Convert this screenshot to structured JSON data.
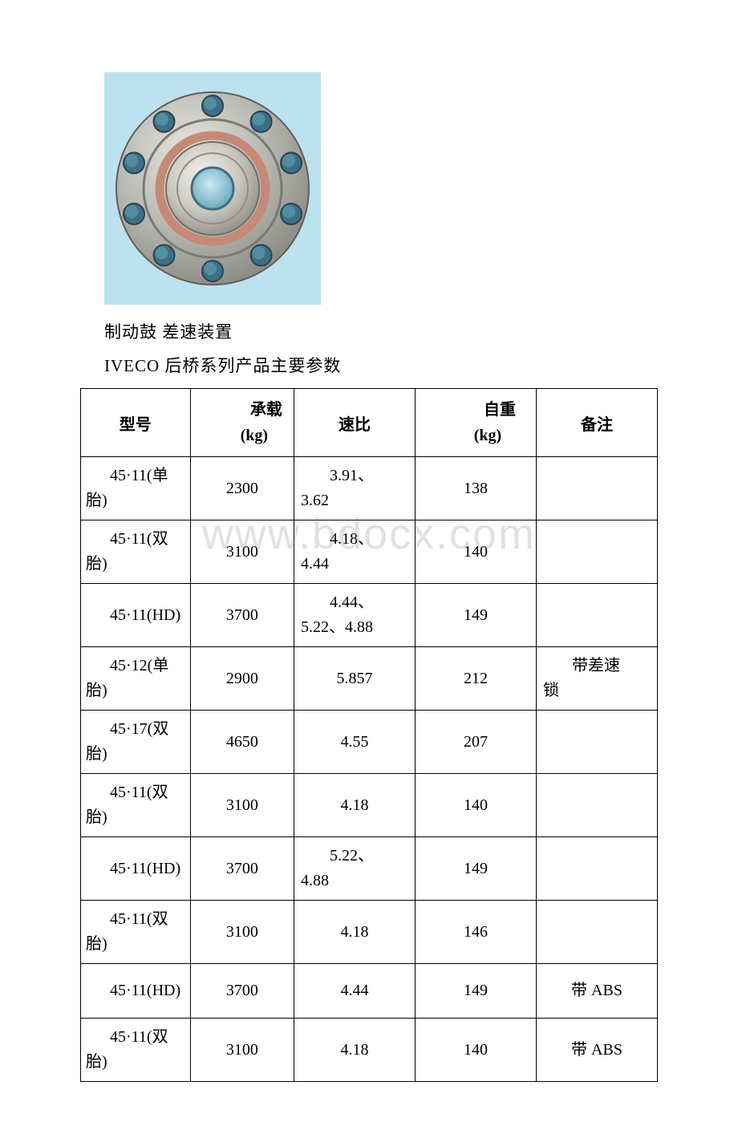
{
  "image": {
    "bg_color": "#bce1ef",
    "flange": {
      "outer_fill": "#b9b9b4",
      "outer_stroke": "#6f6f68",
      "hub_fill": "#c9c7bd",
      "hub_highlight": "#e6e4da",
      "rust_ring": "#c48a77",
      "bore_fill": "#8fc7d8",
      "bolt_hole_fill": "#3e6f85",
      "bolt_hole_stroke": "#2a4b5a"
    }
  },
  "caption": "制动鼓 差速装置",
  "title": "IVECO 后桥系列产品主要参数",
  "watermark": "www.bdocx.com",
  "table": {
    "columns": [
      {
        "key": "model",
        "label_lines": [
          "型号"
        ],
        "header_style": "hdr-single"
      },
      {
        "key": "load",
        "label_lines": [
          "承载",
          "(kg)"
        ],
        "header_style": "hdr-inner"
      },
      {
        "key": "ratio",
        "label_lines": [
          "速比"
        ],
        "header_style": "hdr-single"
      },
      {
        "key": "weight",
        "label_lines": [
          "自重",
          "(kg)"
        ],
        "header_style": "hdr-inner"
      },
      {
        "key": "note",
        "label_lines": [
          "备注"
        ],
        "header_style": "hdr-single"
      }
    ],
    "rows": [
      {
        "model": "45·11(单胎)",
        "load": "2300",
        "ratio": "3.91、3.62",
        "ratio_wrap": true,
        "weight": "138",
        "note": ""
      },
      {
        "model": "45·11(双胎)",
        "load": "3100",
        "ratio": "4.18、4.44",
        "ratio_wrap": true,
        "weight": "140",
        "note": ""
      },
      {
        "model": "45·11(HD)",
        "load": "3700",
        "ratio": "4.44、5.22、4.88",
        "ratio_wrap": true,
        "weight": "149",
        "note": ""
      },
      {
        "model": "45·12(单胎)",
        "load": "2900",
        "ratio": "5.857",
        "ratio_wrap": false,
        "weight": "212",
        "note": "带差速锁",
        "note_wrap": true
      },
      {
        "model": "45·17(双胎)",
        "load": "4650",
        "ratio": "4.55",
        "ratio_wrap": false,
        "weight": "207",
        "note": ""
      },
      {
        "model": "45·11(双胎)",
        "load": "3100",
        "ratio": "4.18",
        "ratio_wrap": false,
        "weight": "140",
        "note": ""
      },
      {
        "model": "45·11(HD)",
        "load": "3700",
        "ratio": "5.22、4.88",
        "ratio_wrap": true,
        "weight": "149",
        "note": ""
      },
      {
        "model": "45·11(双胎)",
        "load": "3100",
        "ratio": "4.18",
        "ratio_wrap": false,
        "weight": "146",
        "note": ""
      },
      {
        "model": "45·11(HD)",
        "load": "3700",
        "ratio": "4.44",
        "ratio_wrap": false,
        "weight": "149",
        "note": "带 ABS",
        "note_centered": true
      },
      {
        "model": "45·11(双胎)",
        "load": "3100",
        "ratio": "4.18",
        "ratio_wrap": false,
        "weight": "140",
        "note": "带 ABS",
        "note_centered": true
      }
    ]
  }
}
